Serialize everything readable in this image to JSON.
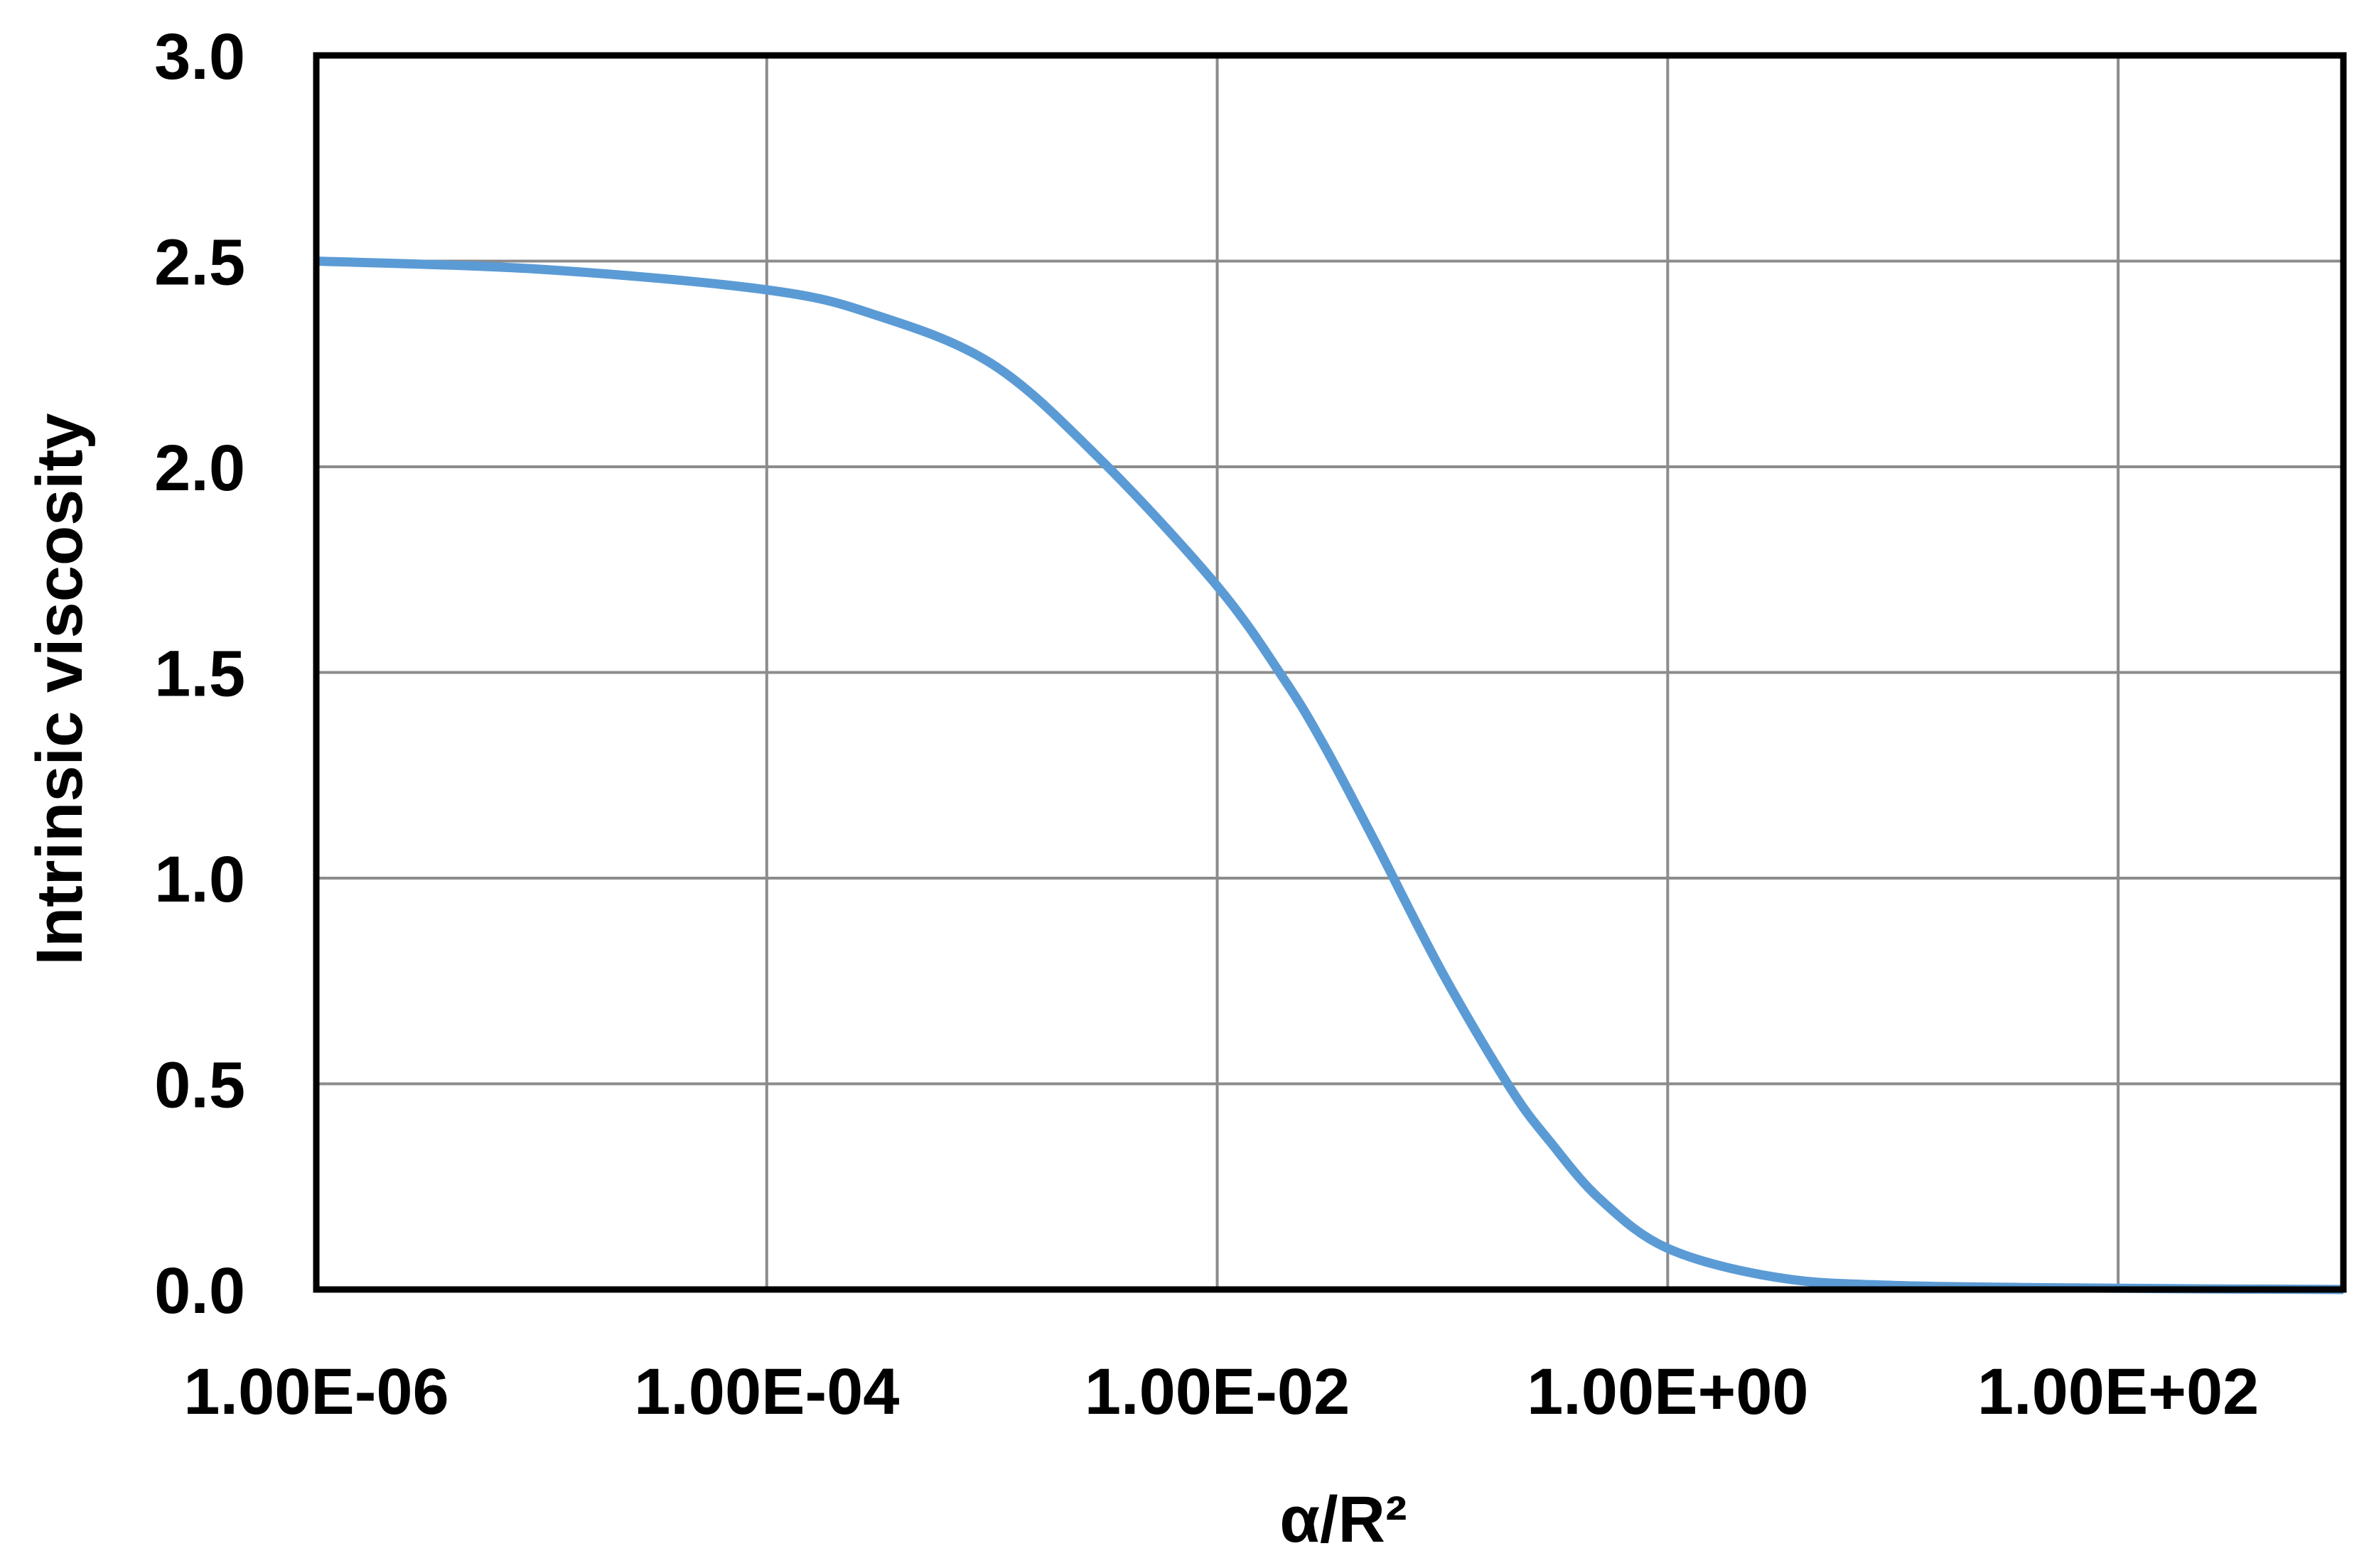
{
  "chart_data": {
    "type": "line",
    "title": "",
    "xlabel": "α/R²",
    "ylabel": "Intrinsic viscosity",
    "x_scale": "log",
    "xlim": [
      1e-06,
      1000
    ],
    "ylim": [
      0,
      3.0
    ],
    "grid": true,
    "legend": "none",
    "x_tick_values": [
      1e-06,
      0.0001,
      0.01,
      1,
      100
    ],
    "x_tick_labels": [
      "1.00E-06",
      "1.00E-04",
      "1.00E-02",
      "1.00E+00",
      "1.00E+02"
    ],
    "y_tick_values": [
      0,
      0.5,
      1.0,
      1.5,
      2.0,
      2.5,
      3.0
    ],
    "y_tick_labels": [
      "0.0",
      "0.5",
      "1.0",
      "1.5",
      "2.0",
      "2.5",
      "3.0"
    ],
    "series": [
      {
        "color": "#5b9bd5",
        "x": [
          1e-06,
          1e-05,
          0.0001,
          0.0003,
          0.001,
          0.003,
          0.01,
          0.02,
          0.03,
          0.05,
          0.1,
          0.2,
          0.3,
          0.5,
          1,
          3,
          10,
          100,
          1000
        ],
        "y": [
          2.5,
          2.48,
          2.43,
          2.37,
          2.25,
          2.02,
          1.71,
          1.48,
          1.32,
          1.09,
          0.77,
          0.49,
          0.36,
          0.22,
          0.1,
          0.03,
          0.01,
          0.003,
          0.0
        ]
      }
    ]
  }
}
